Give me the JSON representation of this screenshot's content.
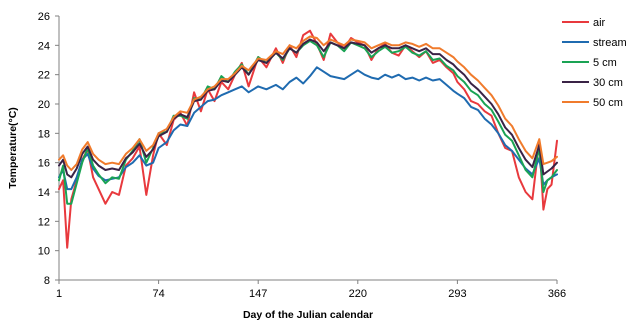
{
  "chart_data": {
    "type": "line",
    "title": "",
    "xlabel": "Day of the Julian calendar",
    "ylabel": "Temperature(°C)",
    "xlim": [
      1,
      366
    ],
    "ylim": [
      8,
      26
    ],
    "x_ticks": [
      "1",
      "74",
      "147",
      "220",
      "293",
      "366"
    ],
    "y_ticks": [
      "8",
      "10",
      "12",
      "14",
      "16",
      "18",
      "20",
      "22",
      "24",
      "26"
    ],
    "grid": false,
    "legend_position": "right",
    "x": [
      1,
      4,
      7,
      10,
      14,
      18,
      22,
      26,
      30,
      35,
      40,
      45,
      50,
      55,
      60,
      65,
      70,
      74,
      80,
      85,
      90,
      95,
      100,
      105,
      110,
      115,
      120,
      125,
      130,
      135,
      140,
      147,
      153,
      160,
      165,
      170,
      175,
      180,
      185,
      190,
      195,
      200,
      205,
      210,
      215,
      220,
      225,
      230,
      235,
      240,
      245,
      250,
      255,
      260,
      265,
      270,
      275,
      280,
      285,
      290,
      293,
      298,
      303,
      308,
      313,
      318,
      323,
      328,
      333,
      338,
      343,
      348,
      353,
      356,
      359,
      362,
      366
    ],
    "series": [
      {
        "name": "air",
        "color": "#e8393d",
        "values": [
          14.2,
          14.8,
          10.2,
          13.5,
          14.8,
          16.2,
          16.9,
          15.0,
          14.2,
          13.2,
          14.0,
          13.8,
          15.8,
          16.3,
          17.1,
          13.8,
          16.5,
          18.0,
          17.2,
          18.9,
          19.4,
          18.5,
          20.8,
          19.5,
          21.0,
          20.2,
          21.5,
          21.0,
          22.0,
          22.8,
          21.2,
          23.2,
          22.5,
          23.8,
          22.8,
          24.0,
          23.2,
          24.7,
          25.0,
          24.1,
          23.0,
          24.8,
          24.2,
          23.8,
          24.5,
          24.2,
          24.0,
          23.0,
          23.8,
          24.1,
          23.5,
          23.3,
          24.0,
          23.6,
          23.2,
          23.6,
          22.8,
          23.0,
          22.5,
          22.1,
          21.5,
          21.0,
          20.2,
          20.0,
          19.5,
          19.2,
          18.0,
          17.0,
          16.8,
          15.0,
          14.0,
          13.5,
          17.5,
          12.8,
          14.2,
          14.5,
          17.5
        ]
      },
      {
        "name": "stream",
        "color": "#1f6bb0",
        "values": [
          15.0,
          15.5,
          14.2,
          14.2,
          15.0,
          16.2,
          16.6,
          15.6,
          15.1,
          14.8,
          14.9,
          15.0,
          15.7,
          16.0,
          16.5,
          15.8,
          16.0,
          17.0,
          17.4,
          18.2,
          18.6,
          18.5,
          19.4,
          19.8,
          20.2,
          20.3,
          20.6,
          20.8,
          21.0,
          21.2,
          20.8,
          21.2,
          21.0,
          21.3,
          21.0,
          21.5,
          21.8,
          21.4,
          21.9,
          22.5,
          22.2,
          21.9,
          21.8,
          21.7,
          22.0,
          22.3,
          22.0,
          21.8,
          21.7,
          22.0,
          21.8,
          22.0,
          21.7,
          21.8,
          21.6,
          21.8,
          21.6,
          21.7,
          21.3,
          20.9,
          20.7,
          20.4,
          19.8,
          19.6,
          19.0,
          18.6,
          18.0,
          17.2,
          16.8,
          16.2,
          15.6,
          15.2,
          16.3,
          14.5,
          14.8,
          15.0,
          15.2
        ]
      },
      {
        "name": "5 cm",
        "color": "#1aa354",
        "values": [
          14.8,
          15.8,
          13.2,
          13.2,
          14.6,
          16.0,
          17.0,
          15.8,
          15.2,
          14.6,
          15.0,
          14.9,
          16.2,
          16.8,
          17.6,
          16.0,
          17.0,
          18.0,
          18.1,
          19.2,
          19.2,
          19.0,
          20.4,
          20.3,
          21.2,
          21.0,
          21.9,
          21.5,
          22.2,
          22.7,
          22.0,
          23.2,
          22.8,
          23.5,
          23.0,
          23.8,
          23.5,
          24.0,
          24.3,
          24.0,
          23.2,
          24.2,
          24.0,
          23.6,
          24.2,
          24.0,
          23.8,
          23.2,
          23.6,
          23.9,
          23.5,
          23.6,
          23.9,
          23.5,
          23.3,
          23.6,
          23.0,
          23.1,
          22.6,
          22.3,
          21.9,
          21.5,
          20.9,
          20.6,
          20.0,
          19.6,
          18.8,
          17.9,
          17.5,
          16.5,
          15.5,
          15.0,
          17.0,
          14.0,
          14.8,
          15.0,
          15.5
        ]
      },
      {
        "name": "30 cm",
        "color": "#3a2346",
        "values": [
          15.8,
          16.2,
          15.2,
          15.0,
          15.6,
          16.6,
          17.1,
          16.2,
          15.8,
          15.5,
          15.6,
          15.5,
          16.3,
          16.7,
          17.3,
          16.4,
          16.9,
          17.8,
          18.1,
          19.0,
          19.3,
          19.1,
          20.2,
          20.3,
          20.9,
          21.0,
          21.6,
          21.5,
          22.0,
          22.5,
          22.0,
          23.0,
          22.8,
          23.5,
          23.1,
          23.8,
          23.5,
          24.1,
          24.4,
          24.2,
          23.6,
          24.2,
          24.0,
          23.8,
          24.2,
          24.1,
          24.0,
          23.5,
          23.8,
          24.0,
          23.8,
          23.8,
          24.0,
          23.8,
          23.6,
          23.8,
          23.4,
          23.4,
          23.0,
          22.7,
          22.4,
          22.0,
          21.4,
          21.0,
          20.5,
          20.0,
          19.3,
          18.4,
          17.9,
          17.0,
          16.2,
          15.7,
          17.2,
          15.2,
          15.4,
          15.6,
          16.0
        ]
      },
      {
        "name": "50 cm",
        "color": "#f07b2c",
        "values": [
          16.2,
          16.5,
          15.8,
          15.5,
          15.9,
          16.9,
          17.4,
          16.6,
          16.2,
          15.9,
          16.0,
          15.9,
          16.6,
          17.0,
          17.6,
          16.8,
          17.2,
          18.0,
          18.3,
          19.1,
          19.5,
          19.4,
          20.3,
          20.5,
          21.0,
          21.2,
          21.7,
          21.7,
          22.1,
          22.6,
          22.3,
          23.1,
          23.0,
          23.6,
          23.4,
          24.0,
          23.8,
          24.3,
          24.6,
          24.5,
          24.0,
          24.4,
          24.2,
          24.0,
          24.4,
          24.3,
          24.2,
          23.8,
          24.0,
          24.2,
          24.0,
          24.0,
          24.2,
          24.1,
          23.9,
          24.1,
          23.8,
          23.8,
          23.5,
          23.2,
          22.9,
          22.5,
          22.0,
          21.6,
          21.1,
          20.6,
          19.9,
          19.0,
          18.5,
          17.6,
          16.8,
          16.3,
          17.6,
          15.9,
          16.0,
          16.1,
          16.4
        ]
      }
    ]
  }
}
